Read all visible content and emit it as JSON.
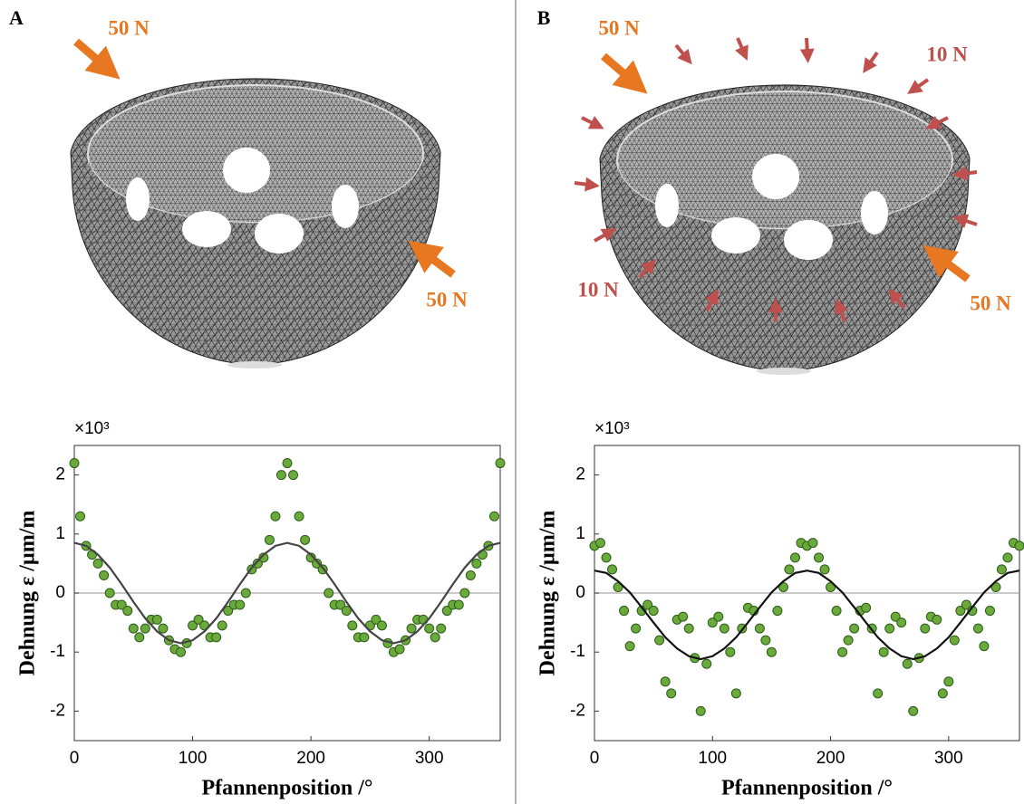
{
  "chart_data": [
    {
      "type": "scatter",
      "panel_label": "A",
      "annotations": [
        {
          "text": "50 N",
          "color": "#e87722"
        },
        {
          "text": "50 N",
          "color": "#e87722"
        }
      ],
      "y_multiplier": "×10³",
      "ylabel": "Dehnung ε /µm/m",
      "xlabel": "Pfannenposition /°",
      "xlim": [
        0,
        360
      ],
      "ylim": [
        -2.5,
        2.5
      ],
      "xticks": [
        0,
        100,
        200,
        300
      ],
      "yticks": [
        2,
        1,
        0,
        -1,
        -2
      ],
      "series": [
        {
          "type": "scatter",
          "color": "#6aaa3a",
          "x": [
            0,
            5,
            10,
            15,
            20,
            25,
            30,
            35,
            40,
            45,
            50,
            55,
            60,
            65,
            70,
            75,
            80,
            85,
            90,
            95,
            100,
            105,
            110,
            115,
            120,
            125,
            130,
            135,
            140,
            145,
            150,
            155,
            160,
            165,
            170,
            175,
            180,
            185,
            190,
            195,
            200,
            205,
            210,
            215,
            220,
            225,
            230,
            235,
            240,
            245,
            250,
            255,
            260,
            265,
            270,
            275,
            280,
            285,
            290,
            295,
            300,
            305,
            310,
            315,
            320,
            325,
            330,
            335,
            340,
            345,
            350,
            355,
            360
          ],
          "values": [
            2.2,
            1.3,
            0.8,
            0.65,
            0.5,
            0.3,
            0.0,
            -0.2,
            -0.2,
            -0.3,
            -0.6,
            -0.75,
            -0.6,
            -0.45,
            -0.45,
            -0.6,
            -0.8,
            -0.95,
            -1.0,
            -0.85,
            -0.55,
            -0.45,
            -0.55,
            -0.75,
            -0.75,
            -0.55,
            -0.3,
            -0.2,
            -0.2,
            0.0,
            0.4,
            0.5,
            0.6,
            0.9,
            1.3,
            2.0,
            2.2,
            2.0,
            1.3,
            0.9,
            0.6,
            0.5,
            0.4,
            0.0,
            -0.2,
            -0.2,
            -0.3,
            -0.55,
            -0.75,
            -0.75,
            -0.55,
            -0.45,
            -0.55,
            -0.85,
            -1.0,
            -0.95,
            -0.8,
            -0.6,
            -0.45,
            -0.45,
            -0.6,
            -0.75,
            -0.6,
            -0.3,
            -0.2,
            -0.2,
            0.0,
            0.3,
            0.5,
            0.65,
            0.8,
            1.3,
            2.2
          ]
        },
        {
          "type": "line",
          "color": "#444444",
          "x": [
            0,
            10,
            20,
            30,
            40,
            50,
            60,
            70,
            80,
            90,
            100,
            110,
            120,
            130,
            140,
            150,
            160,
            170,
            180,
            190,
            200,
            210,
            220,
            230,
            240,
            250,
            260,
            270,
            280,
            290,
            300,
            310,
            320,
            330,
            340,
            350,
            360
          ],
          "values": [
            0.85,
            0.8,
            0.65,
            0.43,
            0.15,
            -0.15,
            -0.43,
            -0.65,
            -0.8,
            -0.85,
            -0.8,
            -0.65,
            -0.43,
            -0.15,
            0.15,
            0.43,
            0.65,
            0.8,
            0.85,
            0.8,
            0.65,
            0.43,
            0.15,
            -0.15,
            -0.43,
            -0.65,
            -0.8,
            -0.85,
            -0.8,
            -0.65,
            -0.43,
            -0.15,
            0.15,
            0.43,
            0.65,
            0.8,
            0.85
          ]
        }
      ]
    },
    {
      "type": "scatter",
      "panel_label": "B",
      "annotations": [
        {
          "text": "50 N",
          "color": "#e87722"
        },
        {
          "text": "10 N",
          "color": "#c0504d"
        },
        {
          "text": "10 N",
          "color": "#c0504d"
        },
        {
          "text": "50 N",
          "color": "#e87722"
        }
      ],
      "y_multiplier": "×10³",
      "ylabel": "Dehnung ε /µm/m",
      "xlabel": "Pfannenposition /°",
      "xlim": [
        0,
        360
      ],
      "ylim": [
        -2.5,
        2.5
      ],
      "xticks": [
        0,
        100,
        200,
        300
      ],
      "yticks": [
        2,
        1,
        0,
        -1,
        -2
      ],
      "series": [
        {
          "type": "scatter",
          "color": "#6aaa3a",
          "x": [
            0,
            5,
            10,
            15,
            20,
            25,
            30,
            35,
            40,
            45,
            50,
            55,
            60,
            65,
            70,
            75,
            80,
            85,
            90,
            95,
            100,
            105,
            110,
            115,
            120,
            125,
            130,
            135,
            140,
            145,
            150,
            155,
            160,
            165,
            170,
            175,
            180,
            185,
            190,
            195,
            200,
            205,
            210,
            215,
            220,
            225,
            230,
            235,
            240,
            245,
            250,
            255,
            260,
            265,
            270,
            275,
            280,
            285,
            290,
            295,
            300,
            305,
            310,
            315,
            320,
            325,
            330,
            335,
            340,
            345,
            350,
            355,
            360
          ],
          "values": [
            0.8,
            0.85,
            0.6,
            0.4,
            0.1,
            -0.3,
            -0.9,
            -0.6,
            -0.3,
            -0.2,
            -0.3,
            -0.8,
            -1.5,
            -1.7,
            -0.45,
            -0.4,
            -0.6,
            -1.1,
            -2.0,
            -1.2,
            -0.5,
            -0.4,
            -0.6,
            -1.0,
            -1.7,
            -0.6,
            -0.25,
            -0.3,
            -0.6,
            -0.8,
            -1.0,
            -0.3,
            0.1,
            0.4,
            0.6,
            0.85,
            0.8,
            0.85,
            0.6,
            0.4,
            0.1,
            -0.3,
            -1.0,
            -0.8,
            -0.6,
            -0.3,
            -0.25,
            -0.6,
            -1.7,
            -1.0,
            -0.6,
            -0.4,
            -0.5,
            -1.2,
            -2.0,
            -1.1,
            -0.6,
            -0.4,
            -0.45,
            -1.7,
            -1.5,
            -0.8,
            -0.3,
            -0.2,
            -0.3,
            -0.6,
            -0.9,
            -0.3,
            0.1,
            0.4,
            0.6,
            0.85,
            0.8
          ]
        },
        {
          "type": "line",
          "color": "#111111",
          "x": [
            0,
            10,
            20,
            30,
            40,
            50,
            60,
            70,
            80,
            90,
            100,
            110,
            120,
            130,
            140,
            150,
            160,
            170,
            180,
            190,
            200,
            210,
            220,
            230,
            240,
            250,
            260,
            270,
            280,
            290,
            300,
            310,
            320,
            330,
            340,
            350,
            360
          ],
          "values": [
            0.38,
            0.34,
            0.2,
            0.01,
            -0.24,
            -0.5,
            -0.75,
            -0.94,
            -1.07,
            -1.12,
            -1.07,
            -0.94,
            -0.75,
            -0.5,
            -0.24,
            0.01,
            0.2,
            0.34,
            0.38,
            0.34,
            0.2,
            0.01,
            -0.24,
            -0.5,
            -0.75,
            -0.94,
            -1.07,
            -1.12,
            -1.07,
            -0.94,
            -0.75,
            -0.5,
            -0.24,
            0.01,
            0.2,
            0.34,
            0.38
          ]
        }
      ]
    }
  ]
}
